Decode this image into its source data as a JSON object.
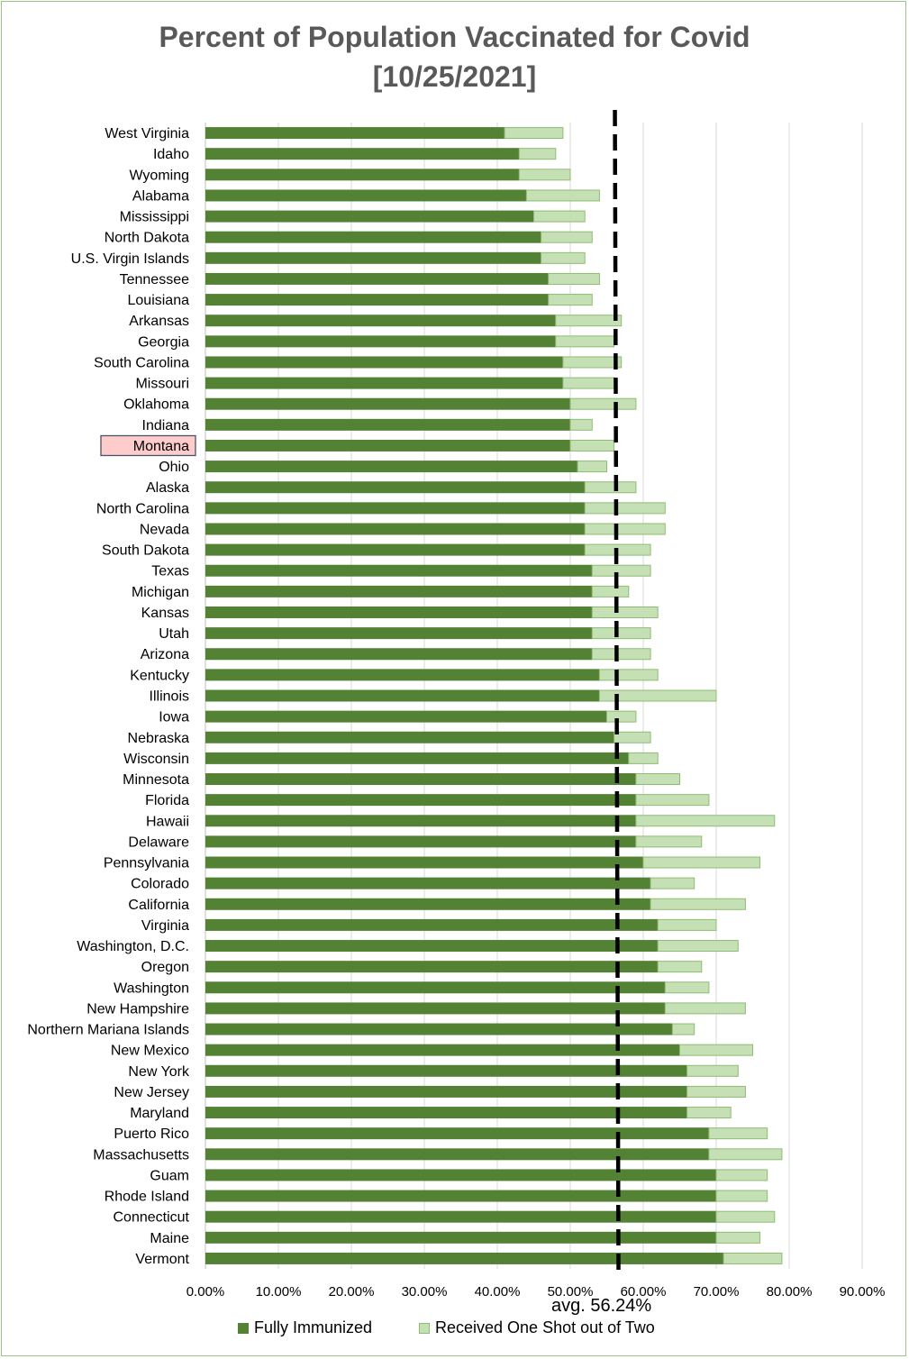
{
  "chart_data": {
    "type": "bar",
    "orientation": "horizontal",
    "stacked": true,
    "title": "Percent of Population Vaccinated for Covid",
    "subtitle": "[10/25/2021]",
    "highlight_category": "Montana",
    "categories": [
      "West Virginia",
      "Idaho",
      "Wyoming",
      "Alabama",
      "Mississippi",
      "North Dakota",
      "U.S. Virgin Islands",
      "Tennessee",
      "Louisiana",
      "Arkansas",
      "Georgia",
      "South Carolina",
      "Missouri",
      "Oklahoma",
      "Indiana",
      "Montana",
      "Ohio",
      "Alaska",
      "North Carolina",
      "Nevada",
      "South Dakota",
      "Texas",
      "Michigan",
      "Kansas",
      "Utah",
      "Arizona",
      "Kentucky",
      "Illinois",
      "Iowa",
      "Nebraska",
      "Wisconsin",
      "Minnesota",
      "Florida",
      "Hawaii",
      "Delaware",
      "Pennsylvania",
      "Colorado",
      "California",
      "Virginia",
      "Washington, D.C.",
      "Oregon",
      "Washington",
      "New Hampshire",
      "Northern Mariana Islands",
      "New Mexico",
      "New York",
      "New Jersey",
      "Maryland",
      "Puerto Rico",
      "Massachusetts",
      "Guam",
      "Rhode Island",
      "Connecticut",
      "Maine",
      "Vermont"
    ],
    "series": [
      {
        "name": "Fully Immunized",
        "color": "#548235",
        "values": [
          41,
          43,
          43,
          44,
          45,
          46,
          46,
          47,
          47,
          48,
          48,
          49,
          49,
          50,
          50,
          50,
          51,
          52,
          52,
          52,
          52,
          53,
          53,
          53,
          53,
          53,
          54,
          54,
          55,
          56,
          58,
          59,
          59,
          59,
          59,
          60,
          61,
          61,
          62,
          62,
          62,
          63,
          63,
          64,
          65,
          66,
          66,
          66,
          69,
          69,
          70,
          70,
          70,
          70,
          71
        ]
      },
      {
        "name": "Received One Shot out of Two",
        "color": "#c5e0b4",
        "values": [
          8,
          5,
          7,
          10,
          7,
          7,
          6,
          7,
          6,
          9,
          8,
          8,
          7,
          9,
          3,
          6,
          4,
          7,
          11,
          11,
          9,
          8,
          5,
          9,
          8,
          8,
          8,
          16,
          4,
          5,
          4,
          6,
          10,
          19,
          9,
          16,
          6,
          13,
          8,
          11,
          6,
          6,
          11,
          3,
          10,
          7,
          8,
          6,
          8,
          10,
          7,
          7,
          8,
          6,
          8
        ]
      }
    ],
    "reference_line": {
      "value": 56.24,
      "label": "avg. 56.24%"
    },
    "xlim": [
      0,
      90
    ],
    "x_ticks": [
      "0.00%",
      "10.00%",
      "20.00%",
      "30.00%",
      "40.00%",
      "50.00%",
      "60.00%",
      "70.00%",
      "80.00%",
      "90.00%"
    ],
    "grid": "vertical",
    "legend_position": "bottom"
  }
}
